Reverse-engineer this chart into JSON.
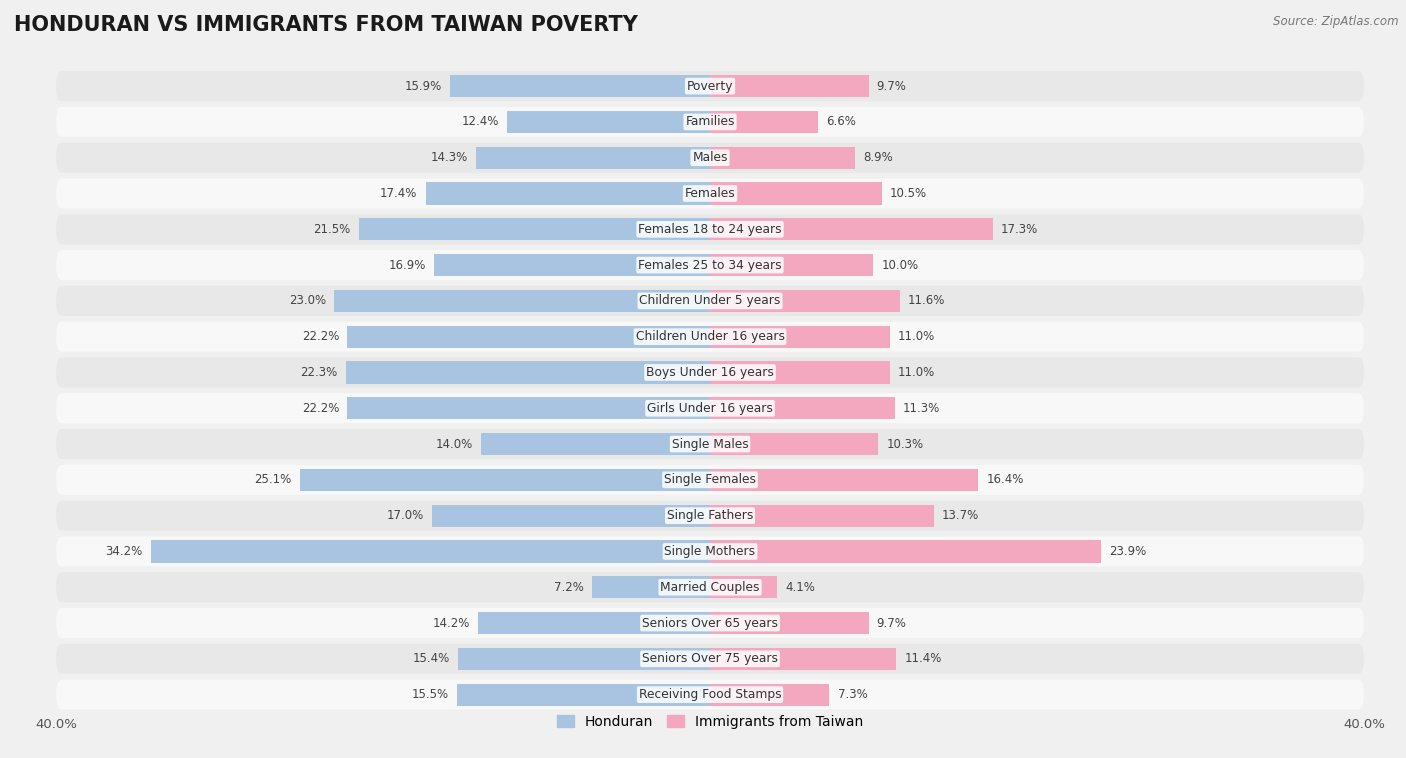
{
  "title": "HONDURAN VS IMMIGRANTS FROM TAIWAN POVERTY",
  "source": "Source: ZipAtlas.com",
  "categories": [
    "Poverty",
    "Families",
    "Males",
    "Females",
    "Females 18 to 24 years",
    "Females 25 to 34 years",
    "Children Under 5 years",
    "Children Under 16 years",
    "Boys Under 16 years",
    "Girls Under 16 years",
    "Single Males",
    "Single Females",
    "Single Fathers",
    "Single Mothers",
    "Married Couples",
    "Seniors Over 65 years",
    "Seniors Over 75 years",
    "Receiving Food Stamps"
  ],
  "honduran": [
    15.9,
    12.4,
    14.3,
    17.4,
    21.5,
    16.9,
    23.0,
    22.2,
    22.3,
    22.2,
    14.0,
    25.1,
    17.0,
    34.2,
    7.2,
    14.2,
    15.4,
    15.5
  ],
  "taiwan": [
    9.7,
    6.6,
    8.9,
    10.5,
    17.3,
    10.0,
    11.6,
    11.0,
    11.0,
    11.3,
    10.3,
    16.4,
    13.7,
    23.9,
    4.1,
    9.7,
    11.4,
    7.3
  ],
  "honduran_color": "#a8c4e0",
  "taiwan_color": "#f4a8bf",
  "background_color": "#f0f0f0",
  "row_even_color": "#e8e8e8",
  "row_odd_color": "#f8f8f8",
  "axis_limit": 40.0,
  "bar_height": 0.62,
  "title_fontsize": 15,
  "label_fontsize": 8.8,
  "tick_fontsize": 9.5,
  "legend_fontsize": 10,
  "value_fontsize": 8.5
}
